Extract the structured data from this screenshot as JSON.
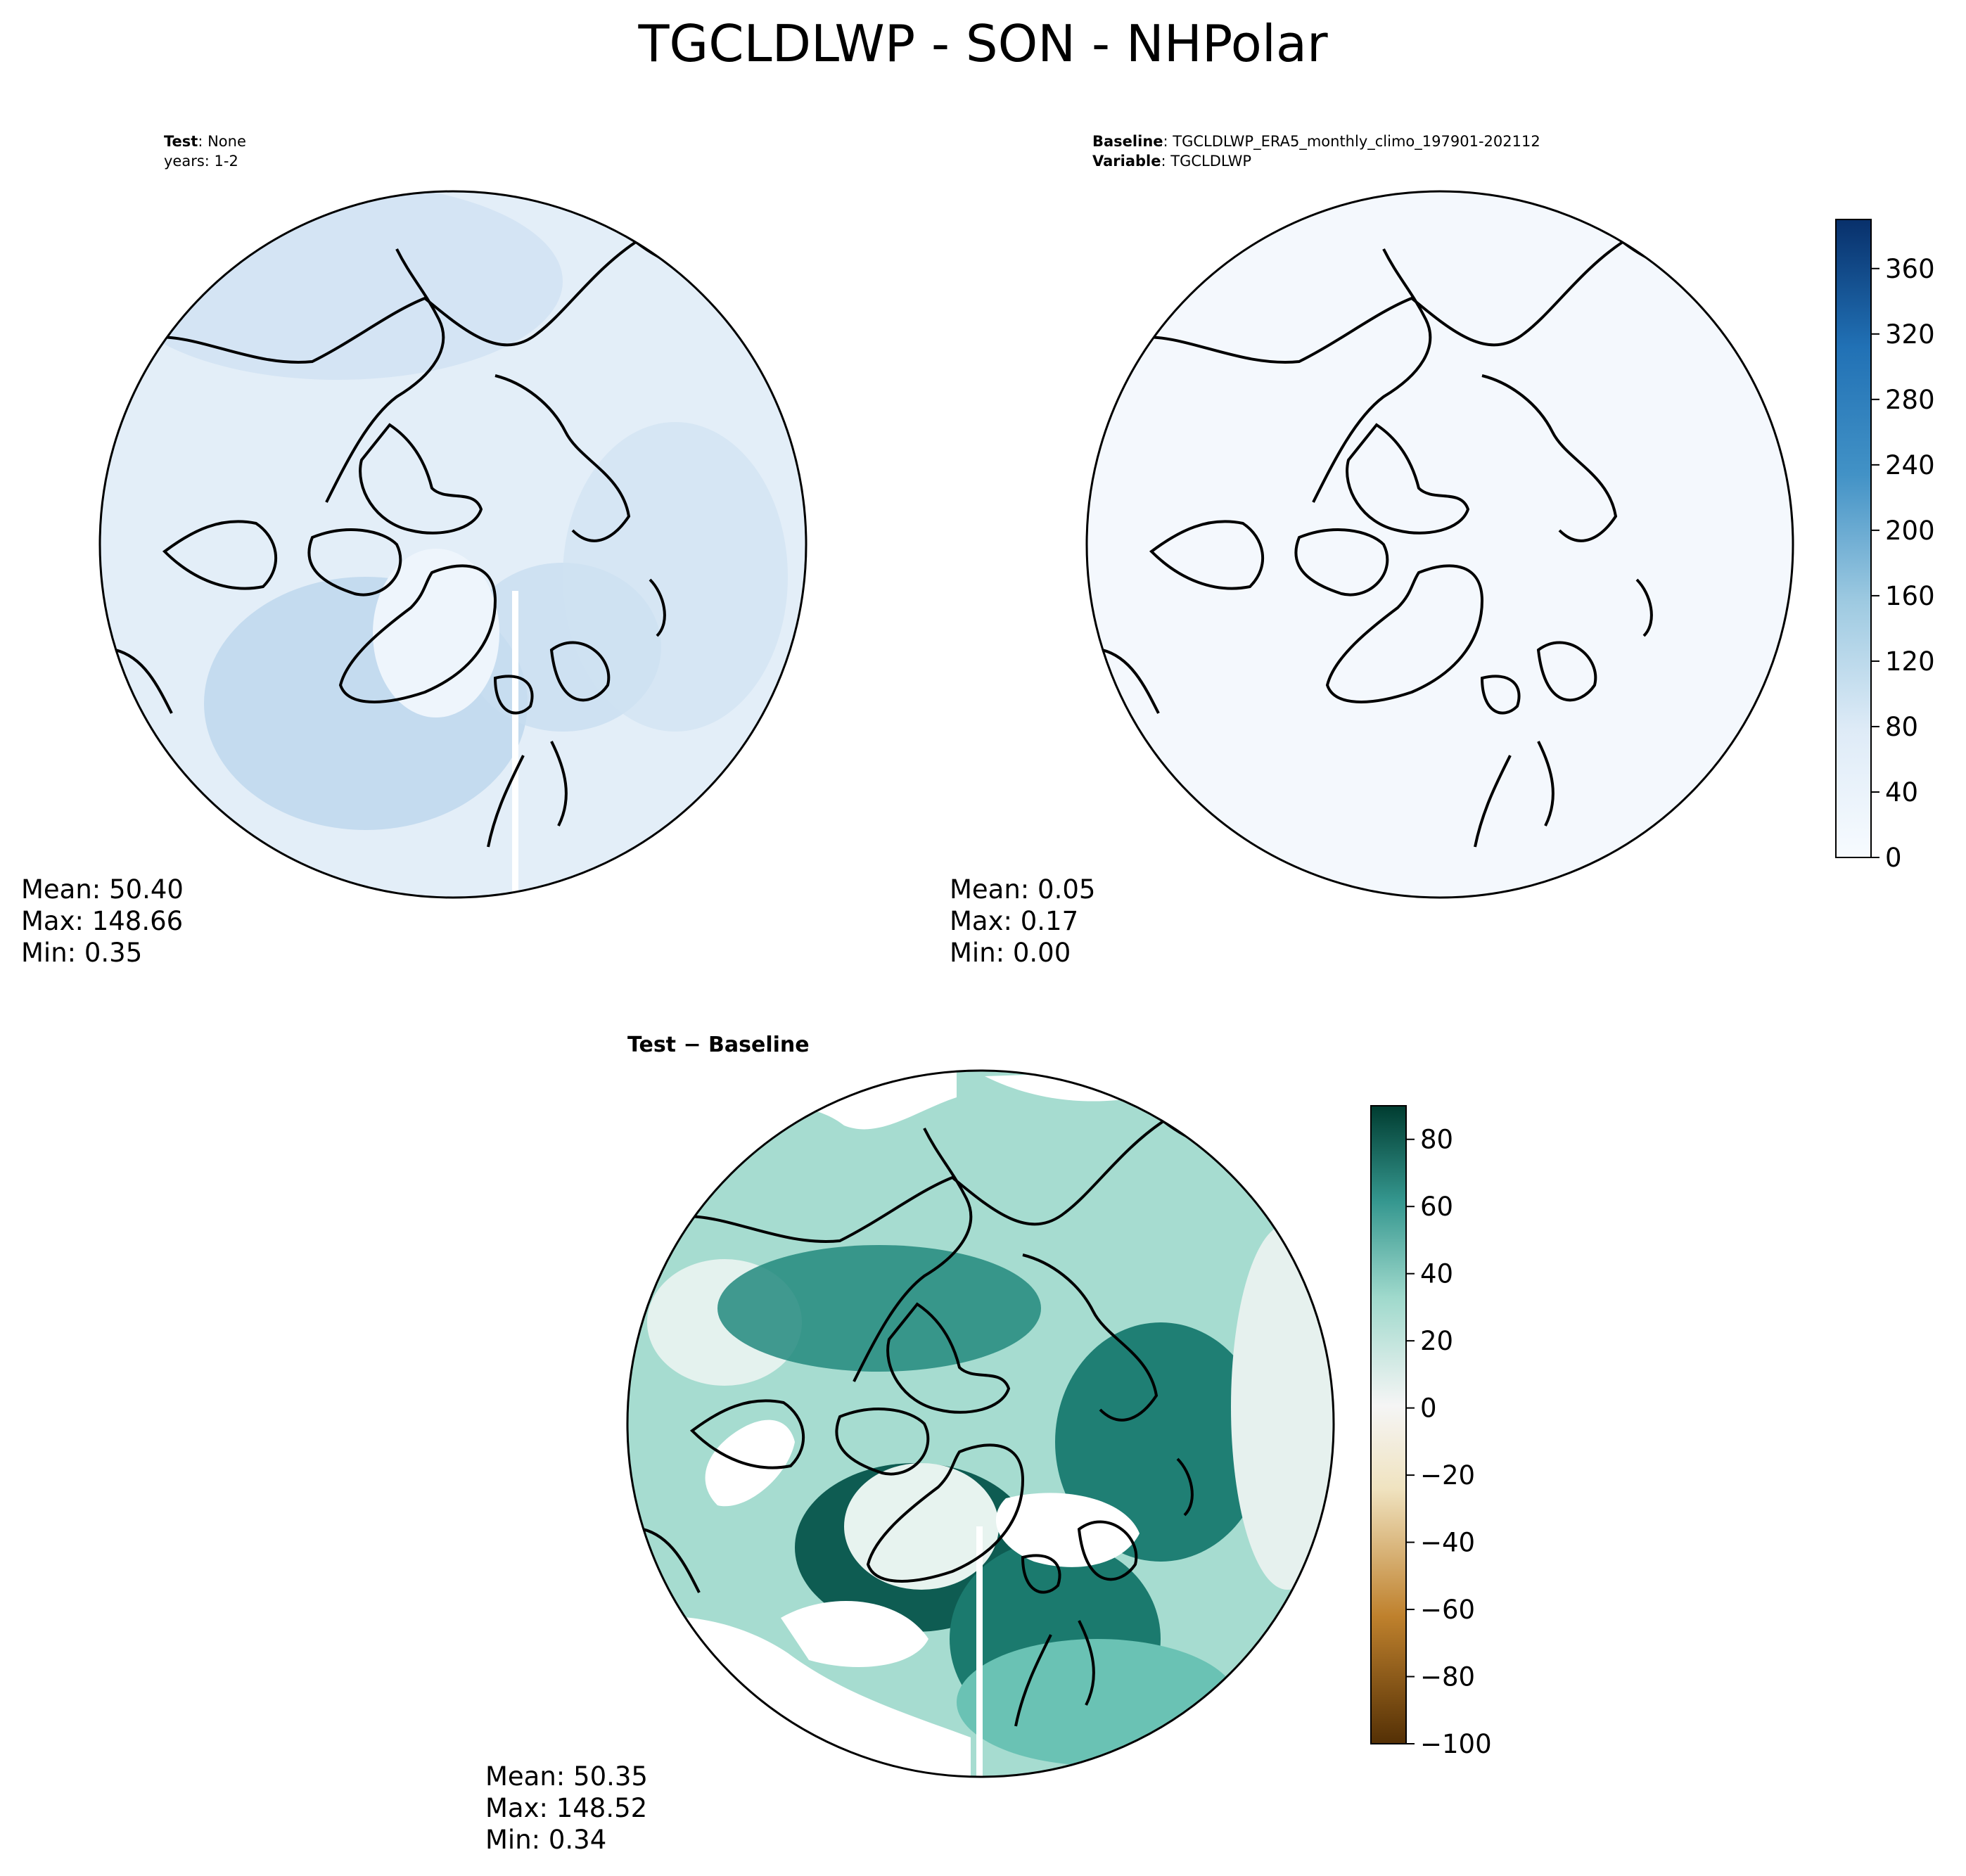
{
  "title": "TGCLDLWP - SON - NHPolar",
  "test_panel": {
    "header_line1_label": "Test",
    "header_line1_value": ": None",
    "header_line2": "years: 1-2",
    "stats": {
      "mean": "Mean: 50.40",
      "max": "Max: 148.66",
      "min": "Min:  0.35"
    }
  },
  "baseline_panel": {
    "header_line1_label": "Baseline",
    "header_line1_value": ": TGCLDLWP_ERA5_monthly_climo_197901-202112",
    "header_line2_label": "Variable",
    "header_line2_value": ": TGCLDLWP",
    "stats": {
      "mean": "Mean:  0.05",
      "max": "Max:  0.17",
      "min": "Min:  0.00"
    }
  },
  "diff_panel": {
    "title": "Test − Baseline",
    "stats": {
      "mean": "Mean: 50.35",
      "max": "Max: 148.52",
      "min": "Min:  0.34"
    }
  },
  "colorbar_top": {
    "colormap": "Blues",
    "range": [
      0,
      390
    ],
    "ticks": [
      "0",
      "40",
      "80",
      "120",
      "160",
      "200",
      "240",
      "280",
      "320",
      "360"
    ],
    "tick_values": [
      0,
      40,
      80,
      120,
      160,
      200,
      240,
      280,
      320,
      360
    ]
  },
  "colorbar_diff": {
    "colormap": "BrBG",
    "range": [
      -100,
      90
    ],
    "ticks": [
      "−100",
      "−80",
      "−60",
      "−40",
      "−20",
      "0",
      "20",
      "40",
      "60",
      "80"
    ],
    "tick_values": [
      -100,
      -80,
      -60,
      -40,
      -20,
      0,
      20,
      40,
      60,
      80
    ]
  },
  "colors": {
    "test_fill": "#dce9f5",
    "baseline_fill": "#f4f8fc",
    "diff_teal_dark": "#004a3f",
    "diff_teal_mid": "#2a8a7f",
    "diff_teal_light": "#a8dccf",
    "diff_near_zero": "#e6f2ef"
  }
}
